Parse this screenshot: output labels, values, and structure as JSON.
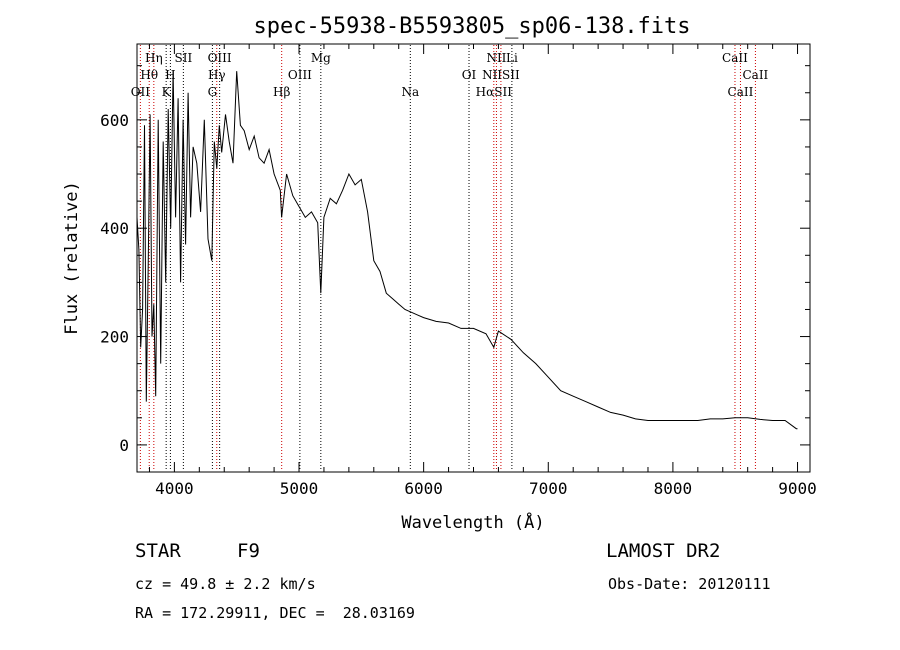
{
  "chart_data": {
    "type": "line",
    "title": "spec-55938-B5593805_sp06-138.fits",
    "xlabel": "Wavelength (Å)",
    "ylabel": "Flux (relative)",
    "xlim": [
      3700,
      9100
    ],
    "ylim": [
      -50,
      740
    ],
    "xticks": [
      4000,
      5000,
      6000,
      7000,
      8000,
      9000
    ],
    "yticks": [
      0,
      200,
      400,
      600
    ],
    "grid": false,
    "series": [
      {
        "name": "",
        "x": [
          3700,
          3715,
          3730,
          3745,
          3760,
          3775,
          3790,
          3805,
          3820,
          3835,
          3850,
          3870,
          3890,
          3910,
          3930,
          3950,
          3970,
          3990,
          4010,
          4030,
          4050,
          4070,
          4090,
          4110,
          4130,
          4150,
          4180,
          4210,
          4240,
          4270,
          4300,
          4320,
          4340,
          4360,
          4380,
          4410,
          4440,
          4470,
          4500,
          4530,
          4560,
          4600,
          4640,
          4680,
          4720,
          4760,
          4800,
          4850,
          4860,
          4900,
          4950,
          5000,
          5050,
          5100,
          5150,
          5175,
          5200,
          5250,
          5300,
          5350,
          5400,
          5450,
          5500,
          5550,
          5600,
          5650,
          5700,
          5750,
          5800,
          5850,
          5900,
          5950,
          6000,
          6100,
          6200,
          6300,
          6400,
          6500,
          6563,
          6600,
          6700,
          6800,
          6900,
          7000,
          7100,
          7200,
          7300,
          7400,
          7500,
          7600,
          7700,
          7800,
          7900,
          8000,
          8100,
          8200,
          8300,
          8400,
          8500,
          8600,
          8700,
          8800,
          8900,
          8990,
          9000
        ],
        "y": [
          420,
          360,
          180,
          250,
          590,
          80,
          330,
          610,
          200,
          260,
          90,
          600,
          150,
          560,
          300,
          620,
          400,
          690,
          420,
          640,
          300,
          600,
          370,
          650,
          420,
          550,
          520,
          430,
          600,
          380,
          340,
          560,
          510,
          590,
          540,
          610,
          560,
          520,
          690,
          590,
          580,
          545,
          570,
          530,
          520,
          545,
          500,
          470,
          420,
          500,
          460,
          440,
          420,
          430,
          410,
          280,
          420,
          455,
          445,
          470,
          500,
          480,
          490,
          430,
          340,
          320,
          280,
          270,
          260,
          250,
          245,
          240,
          235,
          228,
          225,
          215,
          215,
          205,
          180,
          210,
          195,
          170,
          150,
          125,
          100,
          90,
          80,
          70,
          60,
          55,
          48,
          45,
          45,
          45,
          45,
          45,
          48,
          48,
          50,
          50,
          47,
          45,
          45,
          30,
          30
        ]
      }
    ],
    "spectral_lines": [
      {
        "label": "Hη",
        "wl": 3835,
        "row": 0,
        "color": "#cc0000"
      },
      {
        "label": "Hθ",
        "wl": 3798,
        "row": 1,
        "color": "#cc0000"
      },
      {
        "label": "OII",
        "wl": 3727,
        "row": 2,
        "color": "#cc0000"
      },
      {
        "label": "SII",
        "wl": 4072,
        "row": 0,
        "color": "#000000"
      },
      {
        "label": "H",
        "wl": 3968,
        "row": 1,
        "color": "#000000"
      },
      {
        "label": "K",
        "wl": 3934,
        "row": 2,
        "color": "#000000"
      },
      {
        "label": "OIII",
        "wl": 4363,
        "row": 0,
        "color": "#000000"
      },
      {
        "label": "Hγ",
        "wl": 4340,
        "row": 1,
        "color": "#cc0000"
      },
      {
        "label": "G",
        "wl": 4305,
        "row": 2,
        "color": "#000000"
      },
      {
        "label": "Mg",
        "wl": 5175,
        "row": 0,
        "color": "#000000"
      },
      {
        "label": "OIII",
        "wl": 5007,
        "row": 1,
        "color": "#000000"
      },
      {
        "label": "Hβ",
        "wl": 4861,
        "row": 2,
        "color": "#cc0000"
      },
      {
        "label": "Na",
        "wl": 5893,
        "row": 2,
        "color": "#000000"
      },
      {
        "label": "NII",
        "wl": 6584,
        "row": 0,
        "color": "#cc0000"
      },
      {
        "label": "Li",
        "wl": 6708,
        "row": 0,
        "color": "#000000"
      },
      {
        "label": "OI",
        "wl": 6364,
        "row": 1,
        "color": "#000000"
      },
      {
        "label": "NIISII",
        "wl": 6620,
        "row": 1,
        "color": "#cc0000"
      },
      {
        "label": "HαSII",
        "wl": 6563,
        "row": 2,
        "color": "#cc0000"
      },
      {
        "label": "CaII",
        "wl": 8498,
        "row": 0,
        "color": "#cc0000"
      },
      {
        "label": "CaII",
        "wl": 8662,
        "row": 1,
        "color": "#cc0000"
      },
      {
        "label": "CaII",
        "wl": 8542,
        "row": 2,
        "color": "#cc0000"
      }
    ]
  },
  "info": {
    "object_class": "STAR",
    "subclass": "F9",
    "survey": "LAMOST DR2",
    "cz": "cz = 49.8 ± 2.2 km/s",
    "obs_date": "Obs-Date: 20120111",
    "coords": "RA = 172.29911, DEC =  28.03169"
  }
}
